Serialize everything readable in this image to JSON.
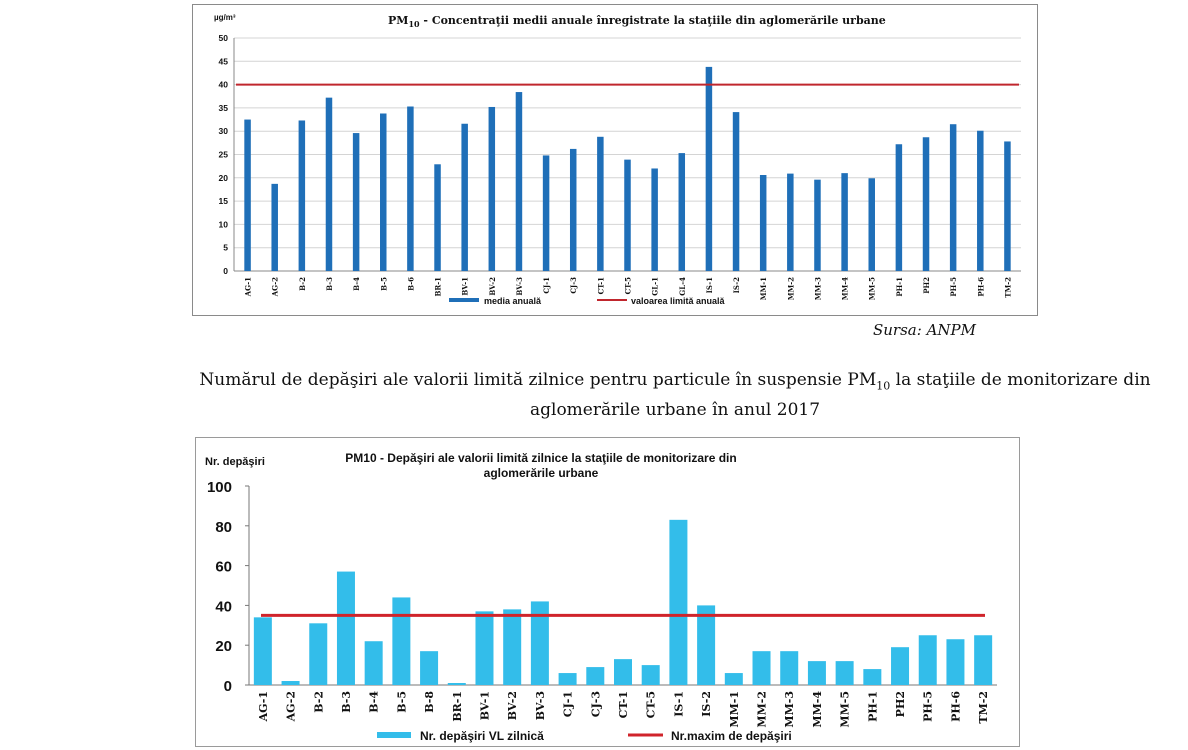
{
  "chart_data": [
    {
      "type": "bar",
      "title": "PM10 - Concentraţii medii anuale înregistrate la staţiile din aglomerările urbane",
      "title_parts": {
        "pre": "PM",
        "sub": "10",
        "post": " - Concentraţii  medii  anuale  înregistrate  la  staţiile  din  aglomerările  urbane"
      },
      "ylabel": "µg/m³",
      "ylim": [
        0,
        50
      ],
      "yticks": [
        0,
        5,
        10,
        15,
        20,
        25,
        30,
        35,
        40,
        45,
        50
      ],
      "grid": true,
      "legend_position": "bottom",
      "categories": [
        "AG-1",
        "AG-2",
        "B-2",
        "B-3",
        "B-4",
        "B-5",
        "B-6",
        "BR-1",
        "BV-1",
        "BV-2",
        "BV-3",
        "CJ-1",
        "CJ-3",
        "CT-1",
        "CT-5",
        "GL-1",
        "GL-4",
        "IS-1",
        "IS-2",
        "MM-1",
        "MM-2",
        "MM-3",
        "MM-4",
        "MM-5",
        "PH-1",
        "PH2",
        "PH-5",
        "PH-6",
        "TM-2"
      ],
      "series": [
        {
          "name": "media anuală",
          "type": "bar",
          "color": "#1f6fb8",
          "values": [
            32.5,
            18.7,
            32.3,
            37.2,
            29.6,
            33.8,
            35.3,
            22.9,
            31.6,
            35.2,
            38.4,
            24.8,
            26.2,
            28.8,
            23.9,
            22.0,
            25.3,
            43.8,
            34.1,
            20.6,
            20.9,
            19.6,
            21.0,
            19.9,
            27.2,
            28.7,
            31.5,
            30.1,
            27.8
          ]
        },
        {
          "name": "valoarea limită anuală",
          "type": "line",
          "color": "#c0262d",
          "value": 40
        }
      ]
    },
    {
      "type": "bar",
      "title": "PM10 - Depăşiri ale valorii limită zilnice la staţiile de monitorizare din aglomerările urbane",
      "title_lines": [
        "PM10  -  Depăşiri ale valorii limită zilnice la staţiile de monitorizare  din",
        "aglomerările  urbane"
      ],
      "ylabel": "Nr. depăşiri",
      "ylim": [
        0,
        100
      ],
      "yticks": [
        0,
        20,
        40,
        60,
        80,
        100
      ],
      "grid": false,
      "legend_position": "bottom",
      "categories": [
        "AG-1",
        "AG-2",
        "B-2",
        "B-3",
        "B-4",
        "B-5",
        "B-8",
        "BR-1",
        "BV-1",
        "BV-2",
        "BV-3",
        "CJ-1",
        "CJ-3",
        "CT-1",
        "CT-5",
        "IS-1",
        "IS-2",
        "MM-1",
        "MM-2",
        "MM-3",
        "MM-4",
        "MM-5",
        "PH-1",
        "PH2",
        "PH-5",
        "PH-6",
        "TM-2"
      ],
      "series": [
        {
          "name": "Nr. depăşiri  VL zilnică",
          "type": "bar",
          "color": "#33bdea",
          "values": [
            34,
            2,
            31,
            57,
            22,
            44,
            17,
            1,
            37,
            38,
            42,
            6,
            9,
            13,
            10,
            83,
            40,
            6,
            17,
            17,
            12,
            12,
            8,
            19,
            25,
            23,
            25
          ]
        },
        {
          "name": "Nr.maxim de depăşiri",
          "type": "line",
          "color": "#d0242b",
          "value": 35
        }
      ]
    }
  ],
  "source": "Sursa: ANPM",
  "caption": {
    "line1_pre": "Numărul de depăşiri ale valorii limită zilnice pentru particule în suspensie PM",
    "line1_sub": "10",
    "line1_post": " la staţiile de monitorizare din",
    "line2": "aglomerările urbane în anul 2017"
  }
}
